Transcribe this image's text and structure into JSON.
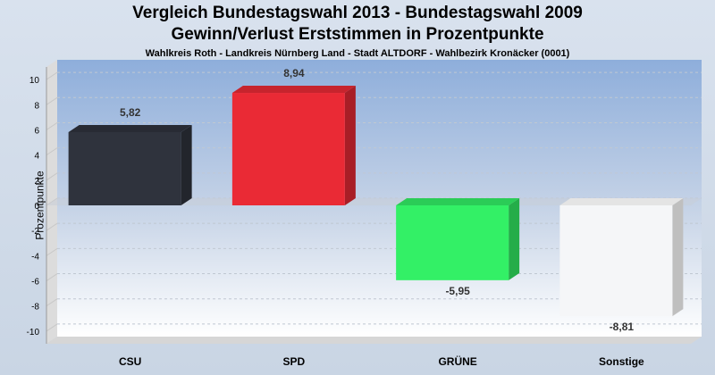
{
  "titles": {
    "line1": "Vergleich Bundestagswahl 2013  - Bundestagswahl 2009",
    "line2": "Gewinn/Verlust Erststimmen in Prozentpunkte",
    "line3": "Wahlkreis Roth - Landkreis Nürnberg Land - Stadt ALTDORF - Wahlbezirk Kronäcker (0001)"
  },
  "chart_data": {
    "type": "bar",
    "categories": [
      "CSU",
      "SPD",
      "GRÜNE",
      "Sonstige"
    ],
    "values": [
      5.82,
      8.94,
      -5.95,
      -8.81
    ],
    "value_labels": [
      "5,82",
      "8,94",
      "-5,95",
      "-8,81"
    ],
    "ylabel": "Prozentpunkte",
    "ylim": [
      -11,
      11
    ],
    "yticks": [
      10,
      8,
      6,
      4,
      2,
      0,
      -2,
      -4,
      -6,
      -8,
      -10
    ],
    "colors": [
      "#2f333d",
      "#ea2a35",
      "#33f066",
      "#f5f6f8"
    ],
    "grid": true,
    "legend": "none"
  }
}
